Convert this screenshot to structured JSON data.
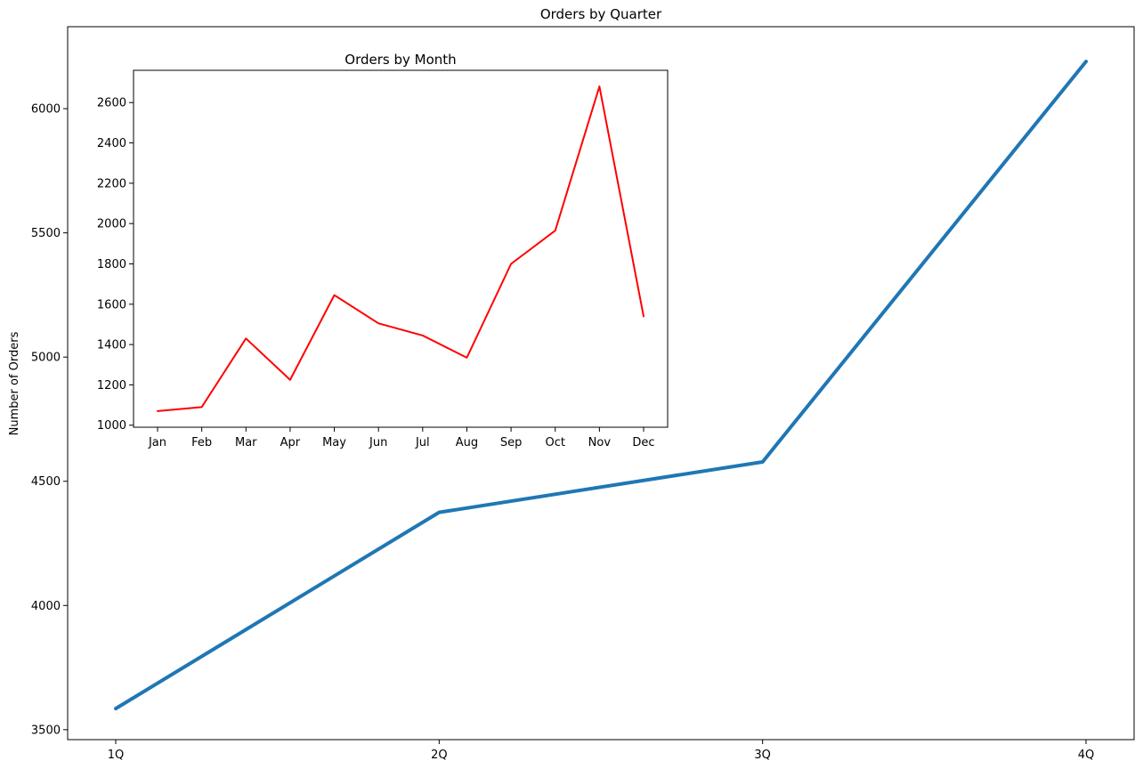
{
  "chart_data": [
    {
      "type": "line",
      "title": "Orders by Quarter",
      "xlabel": "",
      "ylabel": "Number of Orders",
      "categories": [
        "1Q",
        "2Q",
        "3Q",
        "4Q"
      ],
      "series": [
        {
          "values": [
            3585,
            4375,
            4578,
            6190
          ],
          "color": "#1f77b4"
        }
      ],
      "ylim": [
        3460,
        6330
      ],
      "yticks": [
        3500,
        4000,
        4500,
        5000,
        5500,
        6000
      ],
      "grid": false,
      "legend": "none"
    },
    {
      "type": "line",
      "title": "Orders by Month",
      "xlabel": "",
      "ylabel": "",
      "categories": [
        "Jan",
        "Feb",
        "Mar",
        "Apr",
        "May",
        "Jun",
        "Jul",
        "Aug",
        "Sep",
        "Oct",
        "Nov",
        "Dec"
      ],
      "series": [
        {
          "values": [
            1070,
            1090,
            1430,
            1225,
            1645,
            1505,
            1445,
            1335,
            1800,
            1965,
            2680,
            1540
          ],
          "color": "#ff0000"
        }
      ],
      "ylim": [
        990,
        2760
      ],
      "yticks": [
        1000,
        1200,
        1400,
        1600,
        1800,
        2000,
        2200,
        2400,
        2600
      ],
      "grid": false,
      "legend": "none"
    }
  ]
}
